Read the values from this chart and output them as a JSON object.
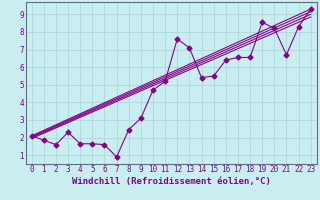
{
  "title": "",
  "xlabel": "Windchill (Refroidissement éolien,°C)",
  "ylabel": "",
  "bg_color": "#c8eef0",
  "grid_color": "#b0d8dc",
  "line_color": "#880088",
  "x_ticks": [
    0,
    1,
    2,
    3,
    4,
    5,
    6,
    7,
    8,
    9,
    10,
    11,
    12,
    13,
    14,
    15,
    16,
    17,
    18,
    19,
    20,
    21,
    22,
    23
  ],
  "y_ticks": [
    1,
    2,
    3,
    4,
    5,
    6,
    7,
    8,
    9
  ],
  "xlim": [
    -0.5,
    23.5
  ],
  "ylim": [
    0.5,
    9.7
  ],
  "line1_x": [
    0,
    1,
    2,
    3,
    4,
    5,
    6,
    7,
    8,
    9,
    10,
    11,
    12,
    13,
    14,
    15,
    16,
    17,
    18,
    19,
    20,
    21,
    22,
    23
  ],
  "line1_y": [
    2.1,
    1.85,
    1.6,
    2.3,
    1.65,
    1.65,
    1.6,
    0.9,
    2.45,
    3.1,
    4.7,
    5.2,
    7.6,
    7.1,
    5.4,
    5.5,
    6.4,
    6.55,
    6.55,
    8.55,
    8.2,
    6.7,
    8.3,
    9.3
  ],
  "line2_x": [
    0,
    23
  ],
  "line2_y": [
    2.1,
    9.3
  ],
  "line3_x": [
    0,
    23
  ],
  "line3_y": [
    2.05,
    9.15
  ],
  "line4_x": [
    0,
    23
  ],
  "line4_y": [
    2.0,
    9.0
  ],
  "line5_x": [
    0,
    23
  ],
  "line5_y": [
    1.95,
    8.85
  ],
  "tick_fontsize": 5.5,
  "xlabel_fontsize": 6.5,
  "marker": "D",
  "markersize": 2.5,
  "linewidth": 0.8
}
